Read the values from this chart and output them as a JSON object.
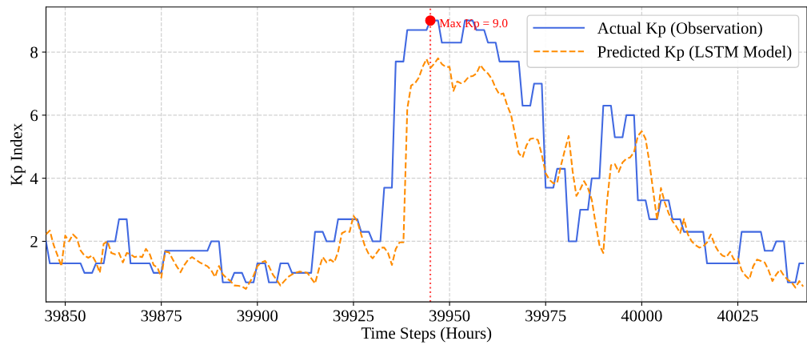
{
  "chart_data": {
    "type": "line",
    "xlabel": "Time Steps (Hours)",
    "ylabel": "Kp Index",
    "xlim": [
      39845,
      40043
    ],
    "xticks": [
      39850,
      39875,
      39900,
      39925,
      39950,
      39975,
      40000,
      40025
    ],
    "ylim": [
      0.08,
      9.43
    ],
    "yticks": [
      2,
      4,
      6,
      8
    ],
    "grid": true,
    "legend": "top right",
    "series": [
      {
        "name": "Actual Kp (Observation)",
        "color": "#4169e1",
        "line_style": "solid",
        "x": [
          39845,
          39846,
          39854,
          39855,
          39857,
          39858,
          39860,
          39861,
          39863,
          39864,
          39866,
          39867,
          39872,
          39873,
          39875,
          39876,
          39887,
          39888,
          39890,
          39891,
          39893,
          39894,
          39896,
          39897,
          39899,
          39900,
          39902,
          39903,
          39905,
          39906,
          39908,
          39909,
          39914,
          39915,
          39917,
          39918,
          39920,
          39921,
          39926,
          39927,
          39929,
          39930,
          39932,
          39933,
          39935,
          39936,
          39938,
          39939,
          39944,
          39945,
          39947,
          39948,
          39953,
          39954,
          39956,
          39957,
          39959,
          39960,
          39962,
          39963,
          39968,
          39969,
          39971,
          39972,
          39974,
          39975,
          39977,
          39978,
          39980,
          39981,
          39983,
          39984,
          39986,
          39987,
          39989,
          39990,
          39992,
          39993,
          39995,
          39996,
          39998,
          39999,
          40001,
          40002,
          40004,
          40005,
          40007,
          40008,
          40010,
          40011,
          40016,
          40017,
          40025,
          40026,
          40031,
          40032,
          40034,
          40035,
          40037,
          40038,
          40040,
          40041,
          40042
        ],
        "values": [
          2.0,
          1.3,
          1.3,
          1.0,
          1.0,
          1.3,
          1.3,
          2.0,
          2.0,
          2.7,
          2.7,
          1.3,
          1.3,
          1.0,
          1.0,
          1.7,
          1.7,
          2.0,
          2.0,
          0.7,
          0.7,
          1.0,
          1.0,
          0.7,
          0.7,
          1.3,
          1.3,
          0.7,
          0.7,
          1.3,
          1.3,
          1.0,
          1.0,
          2.3,
          2.3,
          2.0,
          2.0,
          2.7,
          2.7,
          2.3,
          2.3,
          2.0,
          2.0,
          3.7,
          3.7,
          7.7,
          7.7,
          8.7,
          8.7,
          9.0,
          9.0,
          8.3,
          8.3,
          9.0,
          9.0,
          8.7,
          8.7,
          8.3,
          8.3,
          7.7,
          7.7,
          6.3,
          6.3,
          7.0,
          7.0,
          3.7,
          3.7,
          4.3,
          4.3,
          2.0,
          2.0,
          3.0,
          3.0,
          4.0,
          4.0,
          6.3,
          6.3,
          5.3,
          5.3,
          6.0,
          6.0,
          3.3,
          3.3,
          2.7,
          2.7,
          3.3,
          3.3,
          2.7,
          2.7,
          2.3,
          2.3,
          1.3,
          1.3,
          2.3,
          2.3,
          1.7,
          1.7,
          2.0,
          2.0,
          0.7,
          0.7,
          1.3,
          1.3
        ]
      },
      {
        "name": "Predicted Kp (LSTM Model)",
        "color": "#ff8c00",
        "line_style": "dashed",
        "x": [
          39845,
          39846,
          39847,
          39848,
          39849,
          39850,
          39851,
          39852,
          39853,
          39854,
          39855,
          39856,
          39857,
          39858,
          39859,
          39860,
          39861,
          39862,
          39863,
          39864,
          39865,
          39866,
          39867,
          39868,
          39869,
          39870,
          39871,
          39872,
          39873,
          39874,
          39875,
          39876,
          39877,
          39878,
          39879,
          39880,
          39881,
          39882,
          39883,
          39884,
          39885,
          39886,
          39887,
          39888,
          39889,
          39890,
          39891,
          39892,
          39893,
          39894,
          39895,
          39896,
          39897,
          39898,
          39899,
          39900,
          39901,
          39902,
          39903,
          39904,
          39905,
          39906,
          39907,
          39908,
          39909,
          39910,
          39911,
          39912,
          39913,
          39914,
          39915,
          39916,
          39917,
          39918,
          39919,
          39920,
          39921,
          39922,
          39923,
          39924,
          39925,
          39926,
          39927,
          39928,
          39929,
          39930,
          39931,
          39932,
          39933,
          39934,
          39935,
          39936,
          39937,
          39938,
          39939,
          39940,
          39941,
          39942,
          39943,
          39944,
          39945,
          39946,
          39947,
          39948,
          39949,
          39950,
          39951,
          39952,
          39953,
          39954,
          39955,
          39956,
          39957,
          39958,
          39959,
          39960,
          39961,
          39962,
          39963,
          39964,
          39965,
          39966,
          39967,
          39968,
          39969,
          39970,
          39971,
          39972,
          39973,
          39974,
          39975,
          39976,
          39977,
          39978,
          39979,
          39980,
          39981,
          39982,
          39983,
          39984,
          39985,
          39986,
          39987,
          39988,
          39989,
          39990,
          39991,
          39992,
          39993,
          39994,
          39995,
          39996,
          39997,
          39998,
          39999,
          40000,
          40001,
          40002,
          40003,
          40004,
          40005,
          40006,
          40007,
          40008,
          40009,
          40010,
          40011,
          40012,
          40013,
          40014,
          40015,
          40016,
          40017,
          40018,
          40019,
          40020,
          40021,
          40022,
          40023,
          40024,
          40025,
          40026,
          40027,
          40028,
          40029,
          40030,
          40031,
          40032,
          40033,
          40034,
          40035,
          40036,
          40037,
          40038,
          40039,
          40040,
          40041,
          40042
        ],
        "values": [
          2.22,
          2.34,
          1.88,
          1.55,
          1.21,
          2.18,
          2.0,
          2.22,
          2.1,
          1.71,
          1.55,
          1.48,
          1.55,
          1.33,
          1.0,
          1.92,
          2.0,
          1.63,
          1.59,
          1.63,
          1.33,
          1.63,
          1.59,
          1.5,
          1.53,
          1.5,
          1.76,
          1.59,
          1.25,
          1.17,
          0.85,
          1.67,
          1.65,
          1.42,
          1.21,
          1.02,
          1.25,
          1.42,
          1.5,
          1.42,
          1.33,
          1.27,
          1.21,
          1.08,
          0.87,
          1.22,
          0.95,
          0.83,
          0.74,
          0.6,
          0.59,
          0.57,
          0.49,
          0.7,
          0.91,
          1.21,
          1.33,
          1.38,
          1.21,
          0.95,
          0.78,
          0.6,
          0.74,
          0.87,
          0.95,
          1.0,
          1.04,
          1.02,
          1.0,
          0.83,
          0.66,
          1.12,
          1.5,
          1.33,
          1.42,
          1.33,
          1.67,
          2.26,
          2.32,
          2.3,
          2.81,
          2.64,
          2.22,
          1.84,
          1.59,
          1.46,
          1.63,
          1.8,
          1.8,
          1.63,
          1.25,
          1.76,
          1.97,
          1.97,
          6.2,
          6.94,
          7.01,
          7.19,
          7.53,
          7.78,
          7.49,
          7.63,
          7.8,
          7.62,
          7.53,
          7.53,
          6.77,
          7.07,
          7.01,
          7.07,
          7.22,
          7.24,
          7.32,
          7.59,
          7.43,
          7.32,
          7.15,
          6.86,
          6.65,
          6.69,
          6.31,
          6.01,
          5.42,
          4.79,
          4.66,
          5.04,
          5.25,
          5.27,
          5.21,
          4.75,
          4.16,
          3.95,
          3.84,
          3.86,
          4.41,
          4.9,
          5.34,
          4.24,
          3.44,
          3.65,
          3.91,
          3.69,
          3.32,
          2.56,
          1.88,
          1.63,
          3.3,
          4.41,
          4.45,
          4.2,
          4.5,
          4.62,
          4.66,
          4.83,
          5.34,
          5.49,
          5.25,
          4.5,
          3.57,
          2.68,
          3.69,
          3.23,
          2.89,
          2.64,
          2.47,
          2.26,
          2.71,
          2.22,
          2.0,
          1.88,
          1.8,
          1.84,
          1.97,
          2.22,
          1.88,
          1.67,
          1.55,
          1.5,
          1.67,
          1.42,
          1.46,
          1.08,
          0.91,
          0.8,
          1.21,
          1.42,
          1.38,
          1.33,
          1.08,
          0.74,
          0.95,
          1.1,
          0.91,
          0.78,
          0.7,
          0.53,
          0.74,
          0.57
        ]
      },
      {
        "type": "scatter",
        "color": "#ff0000",
        "marker": "circle",
        "x": [
          39945
        ],
        "values": [
          9.0
        ]
      }
    ],
    "ref_lines": [
      {
        "axis": "x",
        "value": 39945,
        "color": "#ff0000",
        "line_style": "dotted"
      }
    ],
    "annotations": [
      {
        "text": "Max Kp = 9.0",
        "x": 39945,
        "y": 9.0
      }
    ]
  }
}
